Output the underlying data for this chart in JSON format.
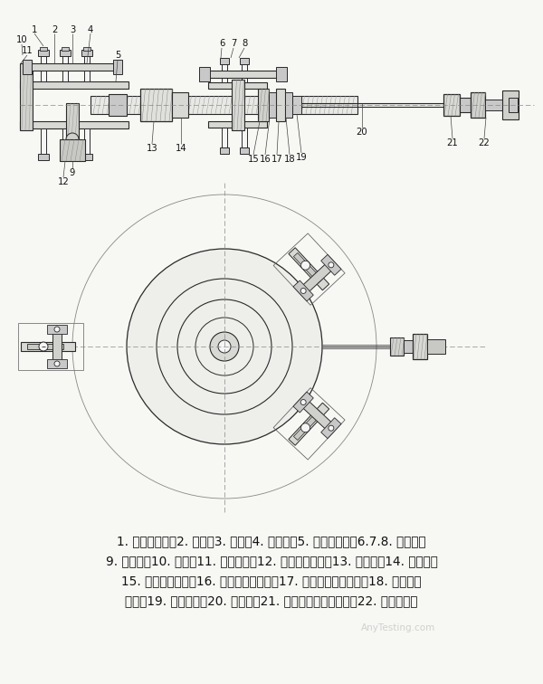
{
  "bg_color": "#f7f7f4",
  "line_color": "#2a2a2a",
  "caption_lines": [
    "1. 上固定螺母；2. 手柄；3. 螺杆；4. 手柄帽；5. 下固定螺母；6.7.8. 同心槽；",
    "9. 中心杆；10. 压板；11. 外固定杆；12. 下固定螺母帽；13. 法兰盘；14. 导压槽；",
    "15. 导压槽固定罩；16. 导压杆连接螺纹；17. 导压杆六角连接帽；18. 导压杆连",
    "接帽；19. 导压出口；20. 导压管；21. 外连接六角固定螺母；22. 外连接螺纹"
  ],
  "watermark": "AnyTesting.com"
}
